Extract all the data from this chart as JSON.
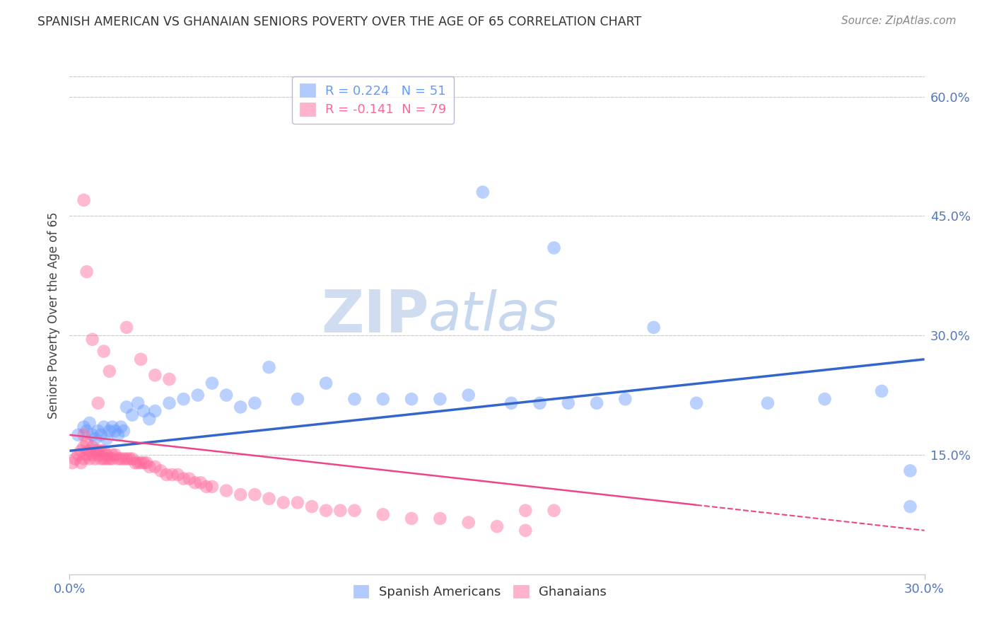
{
  "title": "SPANISH AMERICAN VS GHANAIAN SENIORS POVERTY OVER THE AGE OF 65 CORRELATION CHART",
  "source": "Source: ZipAtlas.com",
  "ylabel": "Seniors Poverty Over the Age of 65",
  "right_yticks": [
    "15.0%",
    "30.0%",
    "45.0%",
    "60.0%"
  ],
  "right_ytick_vals": [
    0.15,
    0.3,
    0.45,
    0.6
  ],
  "legend1_label": "R = 0.224   N = 51",
  "legend2_label": "R = -0.141  N = 79",
  "blue_color": "#6699ff",
  "pink_color": "#ff6699",
  "watermark_zip": "ZIP",
  "watermark_atlas": "atlas",
  "xlim": [
    0.0,
    0.3
  ],
  "ylim": [
    0.0,
    0.65
  ],
  "blue_line": [
    [
      0.0,
      0.155
    ],
    [
      0.3,
      0.27
    ]
  ],
  "pink_line": [
    [
      0.0,
      0.175
    ],
    [
      0.3,
      0.055
    ]
  ],
  "bg_color": "#ffffff",
  "grid_color": "#cccccc",
  "blue_scatter_x": [
    0.003,
    0.005,
    0.006,
    0.007,
    0.008,
    0.009,
    0.01,
    0.011,
    0.012,
    0.013,
    0.014,
    0.015,
    0.016,
    0.017,
    0.018,
    0.019,
    0.02,
    0.022,
    0.024,
    0.026,
    0.028,
    0.03,
    0.035,
    0.04,
    0.045,
    0.05,
    0.055,
    0.06,
    0.065,
    0.07,
    0.08,
    0.09,
    0.1,
    0.11,
    0.12,
    0.13,
    0.14,
    0.155,
    0.165,
    0.175,
    0.185,
    0.195,
    0.205,
    0.22,
    0.245,
    0.265,
    0.285,
    0.295,
    0.17,
    0.145,
    0.295
  ],
  "blue_scatter_y": [
    0.175,
    0.185,
    0.18,
    0.19,
    0.175,
    0.17,
    0.18,
    0.175,
    0.185,
    0.17,
    0.18,
    0.185,
    0.18,
    0.175,
    0.185,
    0.18,
    0.21,
    0.2,
    0.215,
    0.205,
    0.195,
    0.205,
    0.215,
    0.22,
    0.225,
    0.24,
    0.225,
    0.21,
    0.215,
    0.26,
    0.22,
    0.24,
    0.22,
    0.22,
    0.22,
    0.22,
    0.225,
    0.215,
    0.215,
    0.215,
    0.215,
    0.22,
    0.31,
    0.215,
    0.215,
    0.22,
    0.23,
    0.085,
    0.41,
    0.48,
    0.13
  ],
  "pink_scatter_x": [
    0.001,
    0.002,
    0.003,
    0.004,
    0.004,
    0.005,
    0.005,
    0.005,
    0.006,
    0.006,
    0.007,
    0.007,
    0.008,
    0.008,
    0.009,
    0.009,
    0.01,
    0.01,
    0.011,
    0.011,
    0.012,
    0.012,
    0.013,
    0.013,
    0.014,
    0.015,
    0.015,
    0.016,
    0.017,
    0.018,
    0.019,
    0.02,
    0.021,
    0.022,
    0.023,
    0.024,
    0.025,
    0.026,
    0.027,
    0.028,
    0.03,
    0.032,
    0.034,
    0.036,
    0.038,
    0.04,
    0.042,
    0.044,
    0.046,
    0.048,
    0.05,
    0.055,
    0.06,
    0.065,
    0.07,
    0.075,
    0.08,
    0.085,
    0.09,
    0.095,
    0.1,
    0.11,
    0.12,
    0.13,
    0.14,
    0.15,
    0.16,
    0.005,
    0.006,
    0.008,
    0.01,
    0.012,
    0.014,
    0.02,
    0.025,
    0.03,
    0.035,
    0.16,
    0.17
  ],
  "pink_scatter_y": [
    0.14,
    0.145,
    0.15,
    0.14,
    0.155,
    0.145,
    0.16,
    0.175,
    0.15,
    0.165,
    0.145,
    0.155,
    0.15,
    0.16,
    0.145,
    0.155,
    0.15,
    0.155,
    0.145,
    0.155,
    0.145,
    0.155,
    0.145,
    0.15,
    0.145,
    0.145,
    0.15,
    0.15,
    0.145,
    0.145,
    0.145,
    0.145,
    0.145,
    0.145,
    0.14,
    0.14,
    0.14,
    0.14,
    0.14,
    0.135,
    0.135,
    0.13,
    0.125,
    0.125,
    0.125,
    0.12,
    0.12,
    0.115,
    0.115,
    0.11,
    0.11,
    0.105,
    0.1,
    0.1,
    0.095,
    0.09,
    0.09,
    0.085,
    0.08,
    0.08,
    0.08,
    0.075,
    0.07,
    0.07,
    0.065,
    0.06,
    0.055,
    0.47,
    0.38,
    0.295,
    0.215,
    0.28,
    0.255,
    0.31,
    0.27,
    0.25,
    0.245,
    0.08,
    0.08
  ]
}
